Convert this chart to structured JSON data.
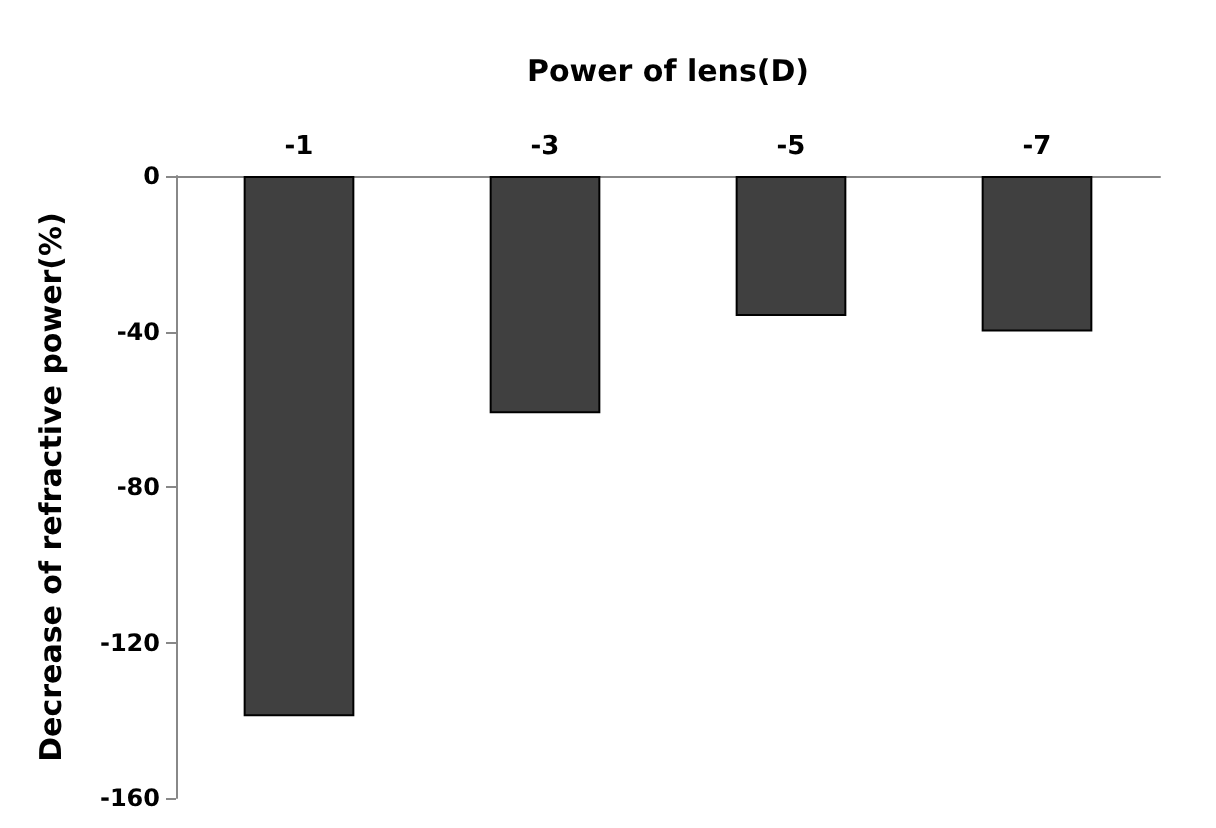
{
  "chart_data": {
    "type": "bar",
    "xlabel": "Power of lens(D)",
    "ylabel": "Decrease of refractive power(%)",
    "categories": [
      "-1",
      "-3",
      "-5",
      "-7"
    ],
    "values": [
      -139,
      -61,
      -36,
      -40
    ],
    "color": "#404040",
    "ylim": [
      -160,
      0
    ],
    "yticks": [
      0,
      -40,
      -80,
      -120,
      -160
    ],
    "grid": false
  }
}
